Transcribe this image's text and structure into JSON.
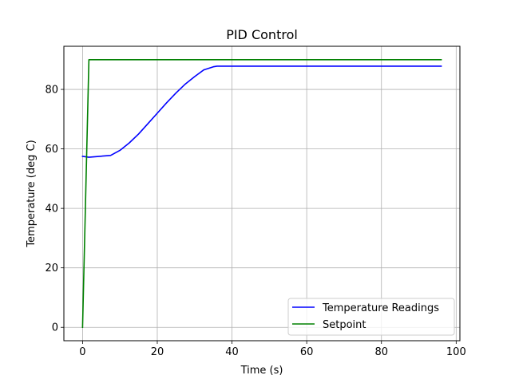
{
  "chart_data": {
    "type": "line",
    "title": "PID Control",
    "xlabel": "Time (s)",
    "ylabel": "Temperature (deg C)",
    "xlim": [
      -5,
      101
    ],
    "ylim": [
      -4.5,
      94.5
    ],
    "xticks": [
      0,
      20,
      40,
      60,
      80,
      100
    ],
    "yticks": [
      0,
      20,
      40,
      60,
      80
    ],
    "xtick_labels": [
      "0",
      "20",
      "40",
      "60",
      "80",
      "100"
    ],
    "ytick_labels": [
      "0",
      "20",
      "40",
      "60",
      "80"
    ],
    "grid": true,
    "legend_position": "lower-right",
    "series": [
      {
        "name": "Temperature Readings",
        "color": "#0000ff",
        "x": [
          0,
          1.7,
          7.5,
          10,
          12.5,
          15,
          17.5,
          20,
          22.5,
          25,
          27.5,
          30,
          32.5,
          35,
          36,
          96
        ],
        "y": [
          57.5,
          57.2,
          57.8,
          59.5,
          62,
          65,
          68.5,
          72,
          75.5,
          78.8,
          81.8,
          84.3,
          86.6,
          87.6,
          87.8,
          87.8
        ]
      },
      {
        "name": "Setpoint",
        "color": "#008000",
        "x": [
          0,
          1.7,
          96
        ],
        "y": [
          0,
          90,
          90
        ]
      }
    ]
  }
}
